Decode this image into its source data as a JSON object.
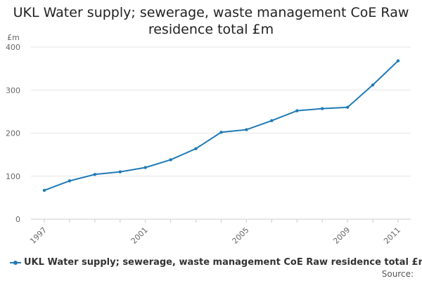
{
  "chart_data": {
    "type": "line",
    "title": [
      "UKL Water supply; sewerage, waste management CoE Raw",
      "residence total £m"
    ],
    "ylabel": "£m",
    "xlabel": "",
    "ylim": [
      0,
      400
    ],
    "yticks": [
      0,
      100,
      200,
      300,
      400
    ],
    "x": [
      1997,
      1998,
      1999,
      2000,
      2001,
      2002,
      2003,
      2004,
      2005,
      2006,
      2007,
      2008,
      2009,
      2010,
      2011
    ],
    "xtick_labels": [
      "1997",
      "2001",
      "2005",
      "2009",
      "2011"
    ],
    "series": [
      {
        "name": "UKL Water supply; sewerage, waste management CoE Raw residence total £m",
        "color": "#1f7bb6",
        "values": [
          67,
          89,
          104,
          110,
          120,
          138,
          164,
          202,
          208,
          229,
          252,
          257,
          260,
          312,
          368
        ]
      }
    ],
    "legend": "bottom-left",
    "grid": true
  },
  "source_label": "Source:"
}
